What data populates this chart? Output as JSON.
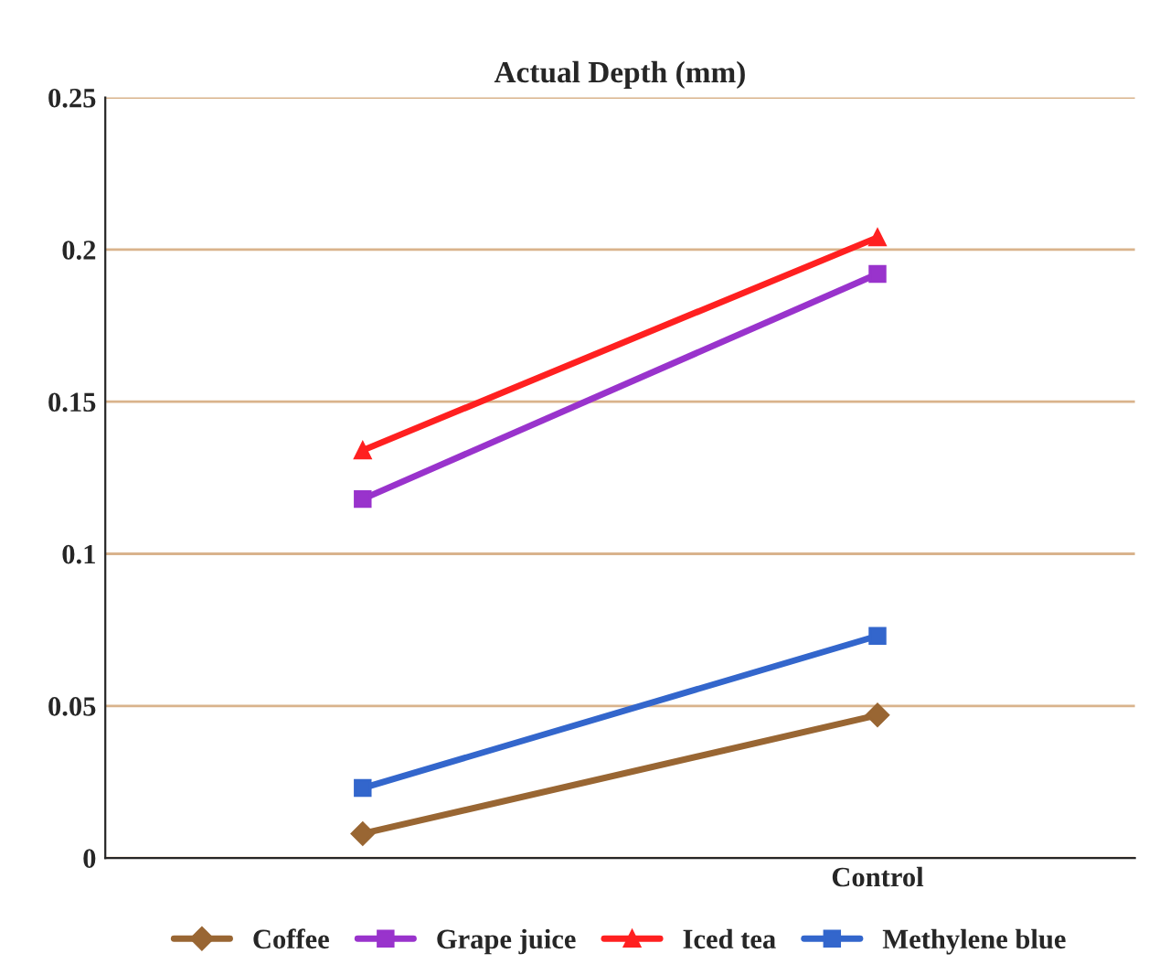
{
  "chart_data": {
    "type": "line",
    "title": "Actual Depth (mm)",
    "categories": [
      null,
      "Control"
    ],
    "series": [
      {
        "name": "Coffee",
        "color": "#996633",
        "marker": "diamond",
        "values": [
          0.008,
          0.047
        ]
      },
      {
        "name": "Grape juice",
        "color": "#9933cc",
        "marker": "square",
        "values": [
          0.118,
          0.192
        ]
      },
      {
        "name": "Iced tea",
        "color": "#ff2020",
        "marker": "triangle",
        "values": [
          0.134,
          0.204
        ]
      },
      {
        "name": "Methylene blue",
        "color": "#3366cc",
        "marker": "square",
        "values": [
          0.023,
          0.073
        ]
      }
    ],
    "ylim": [
      0,
      0.25
    ],
    "yticks": [
      0,
      0.05,
      0.1,
      0.15,
      0.2,
      0.25
    ],
    "grid": "y",
    "legend": "bottom"
  }
}
